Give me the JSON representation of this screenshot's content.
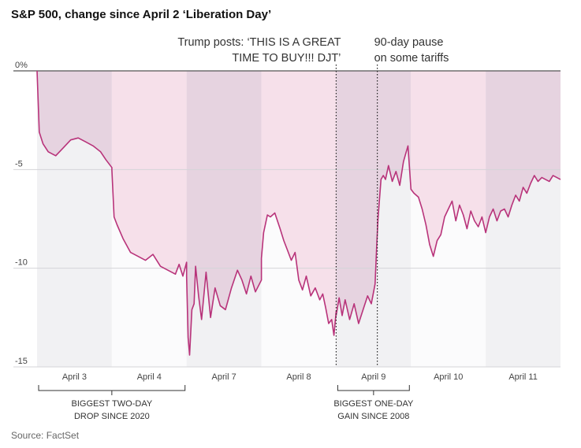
{
  "chart_data": {
    "type": "area",
    "title": "S&P 500, change since April 2 ‘Liberation Day’",
    "source": "Source: FactSet",
    "ylim": [
      -15,
      0
    ],
    "yticks": [
      {
        "value": 0,
        "label": "0%"
      },
      {
        "value": -5,
        "label": "-5"
      },
      {
        "value": -10,
        "label": "-10"
      },
      {
        "value": -15,
        "label": "-15"
      }
    ],
    "days": [
      "April 3",
      "April 4",
      "April 7",
      "April 8",
      "April 9",
      "April 10",
      "April 11"
    ],
    "annotations": [
      {
        "text_lines": [
          "Trump posts: ‘THIS IS A GREAT",
          "TIME TO BUY!!! DJT’"
        ],
        "day_index": 4,
        "position": 0.0
      },
      {
        "text_lines": [
          "90-day pause",
          "on some tariffs"
        ],
        "day_index": 4,
        "position": 0.55
      }
    ],
    "brackets": [
      {
        "text_lines": [
          "BIGGEST TWO-DAY",
          "DROP SINCE 2020"
        ],
        "from_day": 0,
        "to_day": 1
      },
      {
        "text_lines": [
          "BIGGEST ONE-DAY",
          "GAIN SINCE 2008"
        ],
        "from_day": 4,
        "to_day": 4
      }
    ],
    "series": [
      {
        "name": "April 3",
        "x": [
          0,
          0.03,
          0.08,
          0.15,
          0.25,
          0.35,
          0.45,
          0.55,
          0.65,
          0.75,
          0.85,
          0.92,
          1.0
        ],
        "values": [
          0,
          -3.1,
          -3.7,
          -4.1,
          -4.3,
          -3.9,
          -3.5,
          -3.4,
          -3.6,
          -3.8,
          -4.1,
          -4.5,
          -4.9
        ]
      },
      {
        "name": "April 4",
        "x": [
          0,
          0.03,
          0.07,
          0.15,
          0.25,
          0.35,
          0.45,
          0.55,
          0.65,
          0.75,
          0.85,
          0.9,
          0.95,
          1.0
        ],
        "values": [
          -5.0,
          -7.4,
          -7.8,
          -8.5,
          -9.2,
          -9.4,
          -9.6,
          -9.3,
          -9.9,
          -10.1,
          -10.3,
          -9.8,
          -10.4,
          -9.7
        ]
      },
      {
        "name": "April 7",
        "x": [
          0,
          0.02,
          0.04,
          0.07,
          0.1,
          0.12,
          0.16,
          0.2,
          0.26,
          0.32,
          0.38,
          0.45,
          0.52,
          0.6,
          0.68,
          0.74,
          0.8,
          0.86,
          0.92,
          1.0
        ],
        "values": [
          -10.4,
          -13.5,
          -14.4,
          -12.1,
          -11.8,
          -9.9,
          -11.4,
          -12.6,
          -10.2,
          -12.5,
          -11.0,
          -11.9,
          -12.1,
          -11.0,
          -10.1,
          -10.6,
          -11.3,
          -10.4,
          -11.2,
          -10.6
        ]
      },
      {
        "name": "April 8",
        "x": [
          0,
          0.03,
          0.08,
          0.12,
          0.18,
          0.25,
          0.3,
          0.35,
          0.4,
          0.45,
          0.5,
          0.55,
          0.6,
          0.66,
          0.72,
          0.78,
          0.82,
          0.86,
          0.9,
          0.94,
          0.97,
          1.0
        ],
        "values": [
          -9.5,
          -8.2,
          -7.3,
          -7.4,
          -7.2,
          -8.0,
          -8.6,
          -9.1,
          -9.6,
          -9.2,
          -10.6,
          -11.1,
          -10.4,
          -11.4,
          -11.0,
          -11.6,
          -11.3,
          -12.0,
          -12.8,
          -12.6,
          -13.4,
          -12.2
        ]
      },
      {
        "name": "April 9",
        "x": [
          0,
          0.04,
          0.08,
          0.12,
          0.18,
          0.24,
          0.3,
          0.36,
          0.42,
          0.47,
          0.5,
          0.52,
          0.54,
          0.56,
          0.58,
          0.6,
          0.63,
          0.66,
          0.7,
          0.75,
          0.8,
          0.85,
          0.9,
          0.93,
          0.96,
          1.0
        ],
        "values": [
          -12.4,
          -11.5,
          -12.4,
          -11.6,
          -12.6,
          -11.8,
          -12.8,
          -12.1,
          -11.4,
          -11.8,
          -11.2,
          -10.8,
          -9.0,
          -7.5,
          -6.5,
          -5.5,
          -5.3,
          -5.5,
          -4.8,
          -5.6,
          -5.1,
          -5.8,
          -4.6,
          -4.2,
          -3.8,
          -6.0
        ]
      },
      {
        "name": "April 10",
        "x": [
          0,
          0.04,
          0.1,
          0.15,
          0.2,
          0.25,
          0.3,
          0.35,
          0.4,
          0.45,
          0.5,
          0.55,
          0.6,
          0.65,
          0.7,
          0.75,
          0.8,
          0.85,
          0.9,
          0.95,
          1.0
        ],
        "values": [
          -6.0,
          -6.2,
          -6.4,
          -7.0,
          -7.8,
          -8.8,
          -9.4,
          -8.6,
          -8.3,
          -7.4,
          -7.0,
          -6.6,
          -7.6,
          -6.8,
          -7.3,
          -8.0,
          -7.1,
          -7.6,
          -7.9,
          -7.4,
          -8.2
        ]
      },
      {
        "name": "April 11",
        "x": [
          0,
          0.05,
          0.1,
          0.15,
          0.2,
          0.25,
          0.3,
          0.35,
          0.4,
          0.45,
          0.5,
          0.55,
          0.6,
          0.65,
          0.7,
          0.75,
          0.8,
          0.85,
          0.9,
          0.95,
          1.0
        ],
        "values": [
          -8.2,
          -7.4,
          -7.0,
          -7.6,
          -7.1,
          -7.0,
          -7.4,
          -6.8,
          -6.3,
          -6.6,
          -5.9,
          -6.2,
          -5.7,
          -5.3,
          -5.6,
          -5.4,
          -5.5,
          -5.6,
          -5.3,
          -5.4,
          -5.5
        ]
      }
    ]
  }
}
